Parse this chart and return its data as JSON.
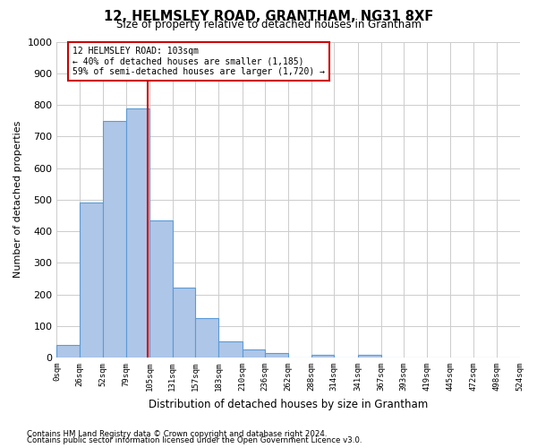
{
  "title": "12, HELMSLEY ROAD, GRANTHAM, NG31 8XF",
  "subtitle": "Size of property relative to detached houses in Grantham",
  "xlabel": "Distribution of detached houses by size in Grantham",
  "ylabel": "Number of detached properties",
  "bar_values": [
    40,
    490,
    750,
    790,
    435,
    220,
    125,
    50,
    25,
    15,
    0,
    10,
    0,
    10,
    0,
    0,
    0,
    0,
    0,
    0
  ],
  "bin_edges": [
    0,
    26,
    52,
    79,
    105,
    131,
    157,
    183,
    210,
    236,
    262,
    288,
    314,
    341,
    367,
    393,
    419,
    445,
    472,
    498,
    524
  ],
  "bar_color": "#aec6e8",
  "bar_edge_color": "#5b9bd5",
  "property_size": 103,
  "vline_color": "#cc0000",
  "annotation_line1": "12 HELMSLEY ROAD: 103sqm",
  "annotation_line2": "← 40% of detached houses are smaller (1,185)",
  "annotation_line3": "59% of semi-detached houses are larger (1,720) →",
  "annotation_box_color": "#ffffff",
  "annotation_box_edge": "#cc0000",
  "ylim": [
    0,
    1000
  ],
  "yticks": [
    0,
    100,
    200,
    300,
    400,
    500,
    600,
    700,
    800,
    900,
    1000
  ],
  "xtick_labels": [
    "0sqm",
    "26sqm",
    "52sqm",
    "79sqm",
    "105sqm",
    "131sqm",
    "157sqm",
    "183sqm",
    "210sqm",
    "236sqm",
    "262sqm",
    "288sqm",
    "314sqm",
    "341sqm",
    "367sqm",
    "393sqm",
    "419sqm",
    "445sqm",
    "472sqm",
    "498sqm",
    "524sqm"
  ],
  "footer_line1": "Contains HM Land Registry data © Crown copyright and database right 2024.",
  "footer_line2": "Contains public sector information licensed under the Open Government Licence v3.0.",
  "background_color": "#ffffff",
  "grid_color": "#cccccc"
}
